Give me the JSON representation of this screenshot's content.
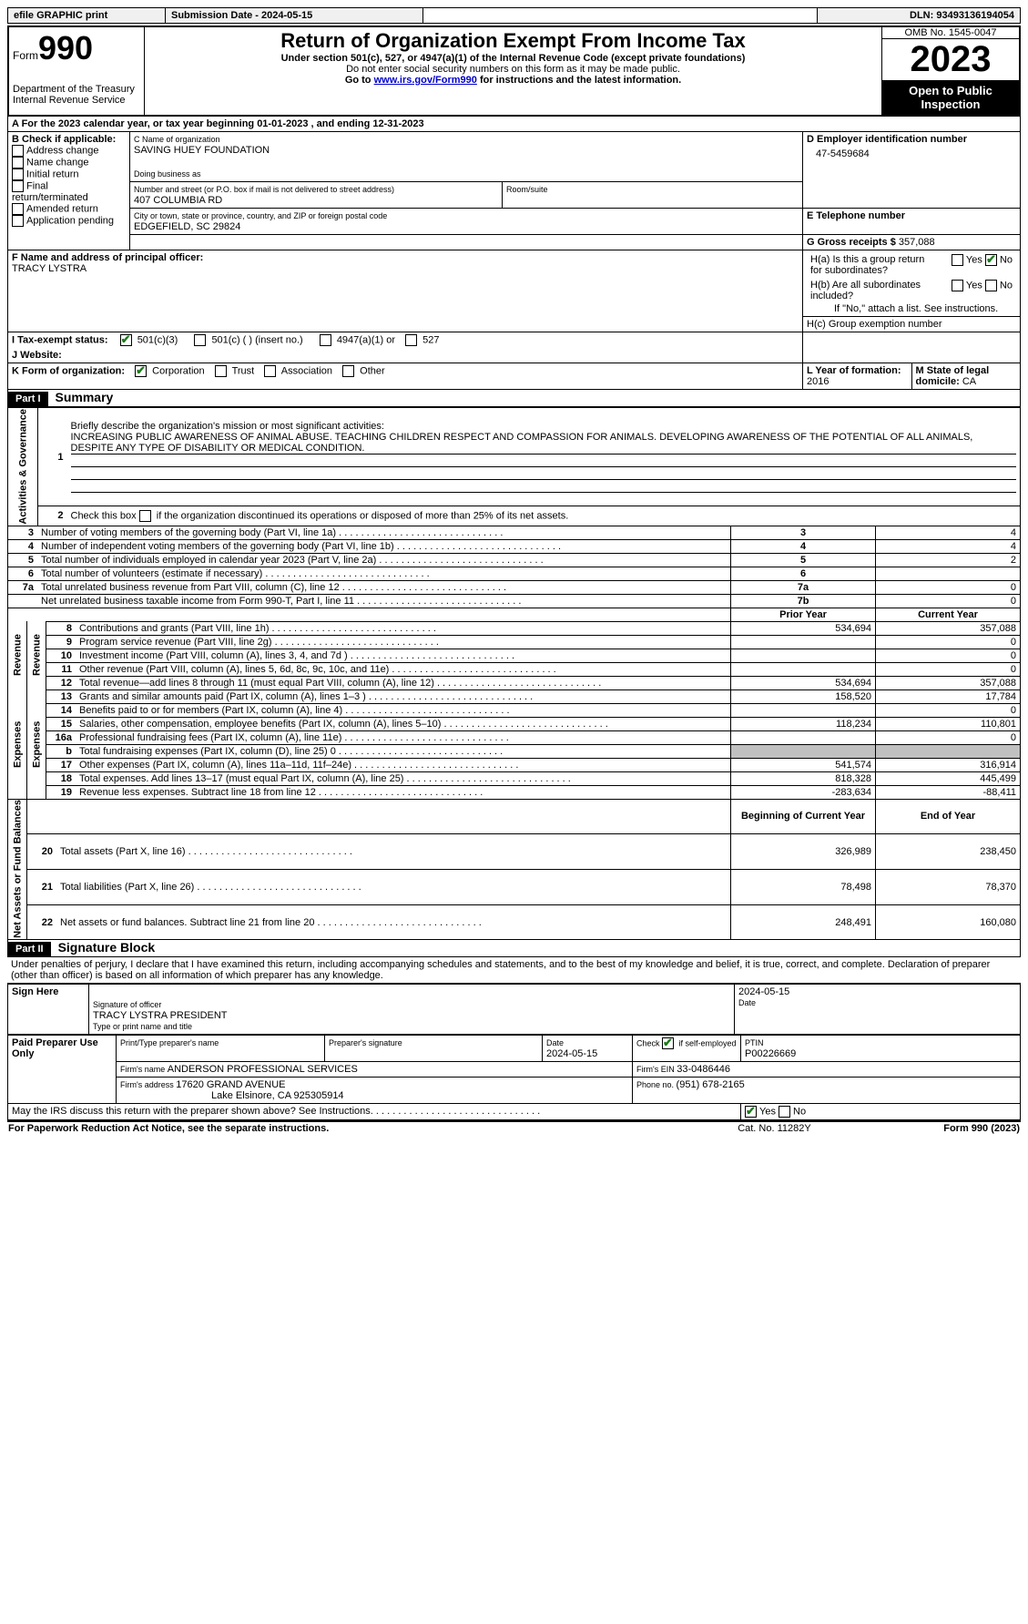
{
  "topbar": {
    "efile": "efile GRAPHIC print",
    "submission_label": "Submission Date - 2024-05-15",
    "dln": "DLN: 93493136194054"
  },
  "header": {
    "form_label": "Form",
    "form_number": "990",
    "dept": "Department of the Treasury",
    "irs": "Internal Revenue Service",
    "title": "Return of Organization Exempt From Income Tax",
    "sub1": "Under section 501(c), 527, or 4947(a)(1) of the Internal Revenue Code (except private foundations)",
    "sub2": "Do not enter social security numbers on this form as it may be made public.",
    "sub3_pre": "Go to ",
    "sub3_link": "www.irs.gov/Form990",
    "sub3_post": " for instructions and the latest information.",
    "omb": "OMB No. 1545-0047",
    "year": "2023",
    "open": "Open to Public Inspection"
  },
  "section_a": {
    "a_line": "A  For the 2023 calendar year, or tax year beginning 01-01-2023    , and ending 12-31-2023",
    "b_label": "B Check if applicable:",
    "b_opts": [
      "Address change",
      "Name change",
      "Initial return",
      "Final return/terminated",
      "Amended return",
      "Application pending"
    ],
    "c_name_label": "C Name of organization",
    "c_name": "SAVING HUEY FOUNDATION",
    "dba_label": "Doing business as",
    "street_label": "Number and street (or P.O. box if mail is not delivered to street address)",
    "street": "407 COLUMBIA RD",
    "room_label": "Room/suite",
    "city_label": "City or town, state or province, country, and ZIP or foreign postal code",
    "city": "EDGEFIELD, SC  29824",
    "d_label": "D Employer identification number",
    "d_val": "47-5459684",
    "e_label": "E Telephone number",
    "g_label": "G Gross receipts $ ",
    "g_val": "357,088",
    "f_label": "F  Name and address of principal officer:",
    "f_val": "TRACY LYSTRA",
    "ha_label": "H(a)  Is this a group return for subordinates?",
    "hb_label": "H(b)  Are all subordinates included?",
    "hb_note": "If \"No,\" attach a list. See instructions.",
    "hc_label": "H(c)  Group exemption number ",
    "yes": "Yes",
    "no": "No",
    "i_label": "I    Tax-exempt status:",
    "i_501c3": "501(c)(3)",
    "i_501c": "501(c) (  ) (insert no.)",
    "i_4947": "4947(a)(1) or",
    "i_527": "527",
    "j_label": "J   Website: ",
    "k_label": "K Form of organization:",
    "k_corp": "Corporation",
    "k_trust": "Trust",
    "k_assoc": "Association",
    "k_other": "Other",
    "l_label": "L Year of formation: ",
    "l_val": "2016",
    "m_label": "M State of legal domicile: ",
    "m_val": "CA"
  },
  "part1": {
    "hdr": "Part I",
    "title": "Summary",
    "line1_label": "Briefly describe the organization's mission or most significant activities:",
    "line1_text": "INCREASING PUBLIC AWARENESS OF ANIMAL ABUSE. TEACHING CHILDREN RESPECT AND COMPASSION FOR ANIMALS. DEVELOPING AWARENESS OF THE POTENTIAL OF ALL ANIMALS, DESPITE ANY TYPE OF DISABILITY OR MEDICAL CONDITION.",
    "line2": "Check this box       if the organization discontinued its operations or disposed of more than 25% of its net assets.",
    "rows_gov": [
      {
        "n": "3",
        "t": "Number of voting members of the governing body (Part VI, line 1a)",
        "box": "3",
        "v": "4"
      },
      {
        "n": "4",
        "t": "Number of independent voting members of the governing body (Part VI, line 1b)",
        "box": "4",
        "v": "4"
      },
      {
        "n": "5",
        "t": "Total number of individuals employed in calendar year 2023 (Part V, line 2a)",
        "box": "5",
        "v": "2"
      },
      {
        "n": "6",
        "t": "Total number of volunteers (estimate if necessary)",
        "box": "6",
        "v": ""
      },
      {
        "n": "7a",
        "t": "Total unrelated business revenue from Part VIII, column (C), line 12",
        "box": "7a",
        "v": "0"
      },
      {
        "n": "",
        "t": "Net unrelated business taxable income from Form 990-T, Part I, line 11",
        "box": "7b",
        "v": "0"
      }
    ],
    "prior_hdr": "Prior Year",
    "curr_hdr": "Current Year",
    "rows_rev": [
      {
        "n": "8",
        "t": "Contributions and grants (Part VIII, line 1h)",
        "p": "534,694",
        "c": "357,088"
      },
      {
        "n": "9",
        "t": "Program service revenue (Part VIII, line 2g)",
        "p": "",
        "c": "0"
      },
      {
        "n": "10",
        "t": "Investment income (Part VIII, column (A), lines 3, 4, and 7d )",
        "p": "",
        "c": "0"
      },
      {
        "n": "11",
        "t": "Other revenue (Part VIII, column (A), lines 5, 6d, 8c, 9c, 10c, and 11e)",
        "p": "",
        "c": "0"
      },
      {
        "n": "12",
        "t": "Total revenue—add lines 8 through 11 (must equal Part VIII, column (A), line 12)",
        "p": "534,694",
        "c": "357,088"
      }
    ],
    "rows_exp": [
      {
        "n": "13",
        "t": "Grants and similar amounts paid (Part IX, column (A), lines 1–3 )",
        "p": "158,520",
        "c": "17,784"
      },
      {
        "n": "14",
        "t": "Benefits paid to or for members (Part IX, column (A), line 4)",
        "p": "",
        "c": "0"
      },
      {
        "n": "15",
        "t": "Salaries, other compensation, employee benefits (Part IX, column (A), lines 5–10)",
        "p": "118,234",
        "c": "110,801"
      },
      {
        "n": "16a",
        "t": "Professional fundraising fees (Part IX, column (A), line 11e)",
        "p": "",
        "c": "0"
      },
      {
        "n": "b",
        "t": "Total fundraising expenses (Part IX, column (D), line 25) 0",
        "p": "GREY",
        "c": "GREY"
      },
      {
        "n": "17",
        "t": "Other expenses (Part IX, column (A), lines 11a–11d, 11f–24e)",
        "p": "541,574",
        "c": "316,914"
      },
      {
        "n": "18",
        "t": "Total expenses. Add lines 13–17 (must equal Part IX, column (A), line 25)",
        "p": "818,328",
        "c": "445,499"
      },
      {
        "n": "19",
        "t": "Revenue less expenses. Subtract line 18 from line 12",
        "p": "-283,634",
        "c": "-88,411"
      }
    ],
    "net_hdr1": "Beginning of Current Year",
    "net_hdr2": "End of Year",
    "rows_net": [
      {
        "n": "20",
        "t": "Total assets (Part X, line 16)",
        "p": "326,989",
        "c": "238,450"
      },
      {
        "n": "21",
        "t": "Total liabilities (Part X, line 26)",
        "p": "78,498",
        "c": "78,370"
      },
      {
        "n": "22",
        "t": "Net assets or fund balances. Subtract line 21 from line 20",
        "p": "248,491",
        "c": "160,080"
      }
    ],
    "vlabels": {
      "gov": "Activities & Governance",
      "rev": "Revenue",
      "exp": "Expenses",
      "net": "Net Assets or Fund Balances"
    }
  },
  "part2": {
    "hdr": "Part II",
    "title": "Signature Block",
    "decl": "Under penalties of perjury, I declare that I have examined this return, including accompanying schedules and statements, and to the best of my knowledge and belief, it is true, correct, and complete. Declaration of preparer (other than officer) is based on all information of which preparer has any knowledge.",
    "sign_here": "Sign Here",
    "sig_label": "Signature of officer",
    "sig_name": "TRACY LYSTRA  PRESIDENT",
    "sig_type": "Type or print name and title",
    "date_label": "Date",
    "date_val": "2024-05-15",
    "paid": "Paid Preparer Use Only",
    "prep_name_label": "Print/Type preparer's name",
    "prep_sig_label": "Preparer's signature",
    "prep_date_label": "Date",
    "prep_date": "2024-05-15",
    "check_if": "Check         if self-employed",
    "ptin_label": "PTIN",
    "ptin": "P00226669",
    "firm_name_label": "Firm's name   ",
    "firm_name": "ANDERSON PROFESSIONAL SERVICES",
    "firm_ein_label": "Firm's EIN  ",
    "firm_ein": "33-0486446",
    "firm_addr_label": "Firm's address ",
    "firm_addr1": "17620 GRAND AVENUE",
    "firm_addr2": "Lake Elsinore, CA  925305914",
    "phone_label": "Phone no. ",
    "phone": "(951) 678-2165",
    "discuss": "May the IRS discuss this return with the preparer shown above? See Instructions."
  },
  "footer": {
    "paperwork": "For Paperwork Reduction Act Notice, see the separate instructions.",
    "cat": "Cat. No. 11282Y",
    "form": "Form 990 (2023)"
  }
}
